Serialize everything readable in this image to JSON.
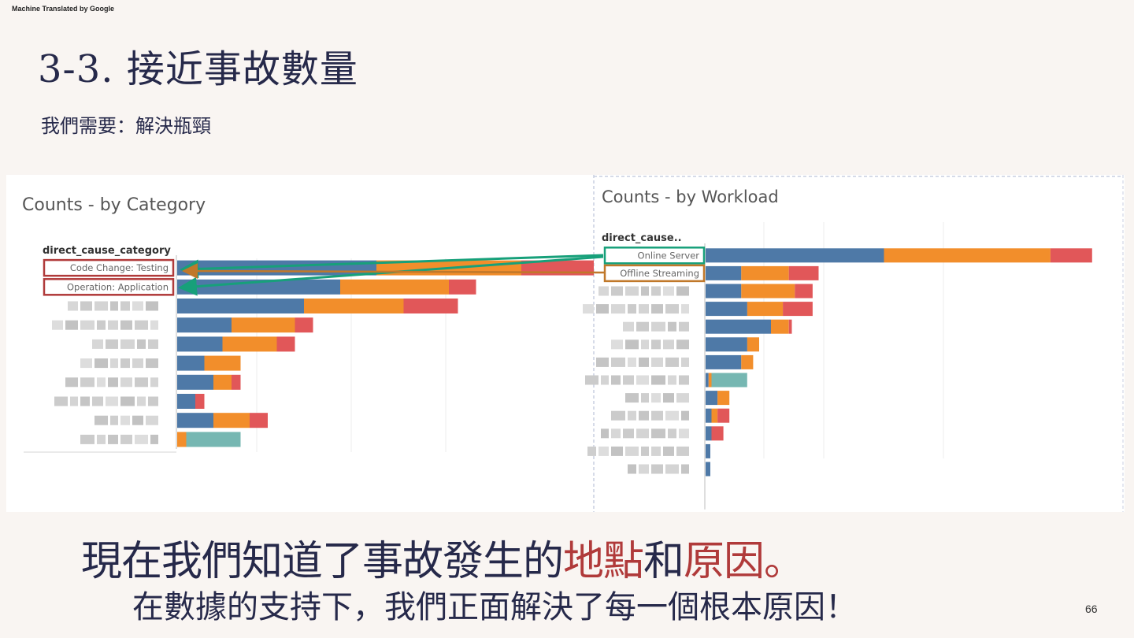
{
  "header": {
    "machine_translated": "Machine Translated by Google"
  },
  "slide": {
    "title": "3-3. 接近事故數量",
    "subtitle": "我們需要：解決瓶頸",
    "bottom_line1_a": "現在我們知道了事故發生的",
    "bottom_line1_b": "地點",
    "bottom_line1_c": "和",
    "bottom_line1_d": "原因。",
    "bottom_line2": "在數據的支持下，我們正面解決了每一個根本原因！",
    "page_number": "66"
  },
  "colors": {
    "blue": "#4e79a7",
    "orange": "#f28e2b",
    "red": "#e15759",
    "teal": "#76b7b2",
    "highlight_red": "#b03a3a",
    "highlight_green": "#17a07a",
    "highlight_orange": "#c0782a"
  },
  "chart_data": [
    {
      "type": "bar",
      "orientation": "horizontal",
      "stacked": true,
      "title": "Counts - by Category",
      "row_header": "direct_cause_category",
      "categories": [
        "Code Change: Testing",
        "Operation: Application",
        "",
        "",
        "",
        "",
        "",
        "",
        "",
        ""
      ],
      "series": [
        {
          "color": "#4e79a7",
          "values": [
            11,
            9,
            7,
            3,
            2.5,
            1.5,
            2,
            1,
            2,
            0
          ]
        },
        {
          "color": "#f28e2b",
          "values": [
            8,
            6,
            5.5,
            3.5,
            3,
            2,
            1,
            0,
            2,
            0.5
          ]
        },
        {
          "color": "#e15759",
          "values": [
            4,
            1.5,
            3,
            1,
            1,
            0,
            0.5,
            0.5,
            1,
            0
          ]
        },
        {
          "color": "#76b7b2",
          "values": [
            0,
            0,
            0,
            0,
            0,
            0,
            0,
            0,
            0,
            3
          ]
        }
      ],
      "highlighted": [
        "Code Change: Testing",
        "Operation: Application"
      ]
    },
    {
      "type": "bar",
      "orientation": "horizontal",
      "stacked": true,
      "title": "Counts - by Workload",
      "row_header": "direct_cause..",
      "categories": [
        "Online Server",
        "Offline Streaming",
        "",
        "",
        "",
        "",
        "",
        "",
        "",
        "",
        "",
        "",
        ""
      ],
      "series": [
        {
          "color": "#4e79a7",
          "values": [
            30,
            6,
            6,
            7,
            11,
            7,
            6,
            0.5,
            2,
            1,
            1,
            0.8,
            0.8
          ]
        },
        {
          "color": "#f28e2b",
          "values": [
            28,
            8,
            9,
            6,
            3,
            2,
            2,
            0.5,
            2,
            1,
            0,
            0,
            0
          ]
        },
        {
          "color": "#e15759",
          "values": [
            7,
            5,
            3,
            5,
            0.5,
            0,
            0,
            0,
            0,
            2,
            2,
            0,
            0
          ]
        },
        {
          "color": "#76b7b2",
          "values": [
            0,
            0,
            0,
            0,
            0,
            0,
            0,
            6,
            0,
            0,
            0,
            0,
            0
          ]
        }
      ],
      "highlighted": [
        "Online Server",
        "Offline Streaming"
      ]
    }
  ]
}
